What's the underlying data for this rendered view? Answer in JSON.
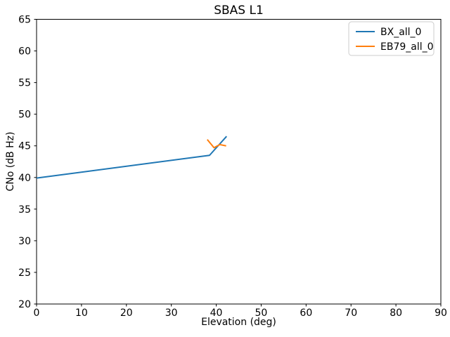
{
  "chart_data": {
    "type": "line",
    "title": "SBAS L1",
    "xlabel": "Elevation (deg)",
    "ylabel": "CNo (dB Hz)",
    "xlim": [
      0,
      90
    ],
    "ylim": [
      20,
      65
    ],
    "xticks": [
      0,
      10,
      20,
      30,
      40,
      50,
      60,
      70,
      80,
      90
    ],
    "yticks": [
      20,
      25,
      30,
      35,
      40,
      45,
      50,
      55,
      60,
      65
    ],
    "grid": false,
    "series": [
      {
        "name": "BX_all_0",
        "color": "#1f77b4",
        "x": [
          0,
          38.5,
          42.3
        ],
        "y": [
          39.9,
          43.5,
          46.5
        ]
      },
      {
        "name": "EB79_all_0",
        "color": "#ff7f0e",
        "x": [
          38.0,
          39.5,
          40.8,
          42.2
        ],
        "y": [
          46.0,
          44.7,
          45.2,
          45.0
        ]
      }
    ],
    "legend": {
      "position": "upper right",
      "entries": [
        "BX_all_0",
        "EB79_all_0"
      ],
      "border_color": "#cccccc",
      "background": "#ffffff"
    },
    "axis_color": "#000000"
  }
}
